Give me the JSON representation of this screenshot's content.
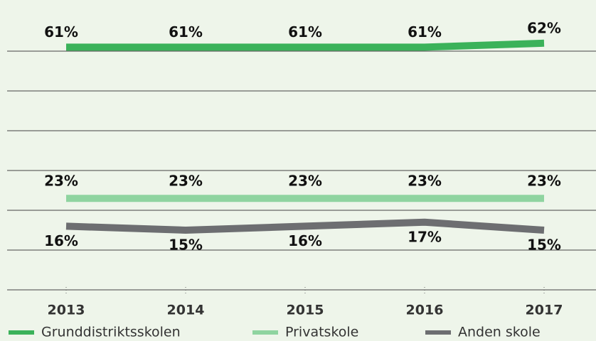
{
  "chart_data": {
    "type": "line",
    "categories": [
      "2013",
      "2014",
      "2015",
      "2016",
      "2017"
    ],
    "series": [
      {
        "name": "Grunddistriktsskolen",
        "color": "#3bb25a",
        "values": [
          61,
          61,
          61,
          61,
          62
        ],
        "value_labels": [
          "61%",
          "61%",
          "61%",
          "61%",
          "62%"
        ]
      },
      {
        "name": "Privatskole",
        "color": "#8fd4a0",
        "values": [
          23,
          23,
          23,
          23,
          23
        ],
        "value_labels": [
          "23%",
          "23%",
          "23%",
          "23%",
          "23%"
        ]
      },
      {
        "name": "Anden skole",
        "color": "#6d6e71",
        "values": [
          16,
          15,
          16,
          17,
          15
        ],
        "value_labels": [
          "16%",
          "15%",
          "16%",
          "17%",
          "15%"
        ]
      }
    ],
    "ylim": [
      0,
      70
    ],
    "yticks": [
      0,
      10,
      20,
      30,
      40,
      50,
      60
    ],
    "grid": true
  }
}
